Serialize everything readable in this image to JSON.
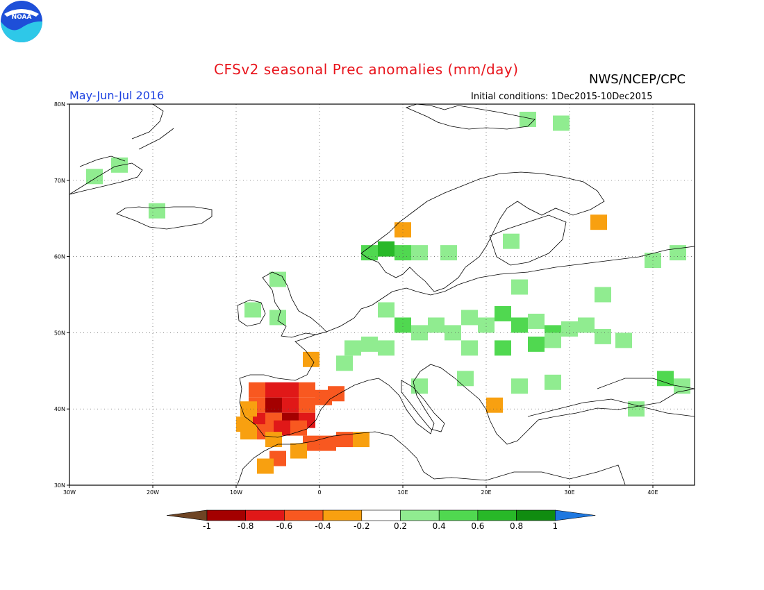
{
  "header": {
    "title": "CFSv2 seasonal Prec anomalies (mm/day)",
    "agency": "NWS/NCEP/CPC",
    "season": "May-Jun-Jul 2016",
    "initial_conditions": "Initial conditions: 1Dec2015-10Dec2015",
    "logo_text": "NOAA"
  },
  "map": {
    "lon_range": [
      -30,
      45
    ],
    "lat_range": [
      30,
      80
    ],
    "lon_tick_labels": [
      "30W",
      "20W",
      "10W",
      "0",
      "10E",
      "20E",
      "30E",
      "40E"
    ],
    "lat_tick_labels": [
      "30N",
      "40N",
      "50N",
      "60N",
      "70N",
      "80N"
    ],
    "grid": "dotted"
  },
  "colorbar": {
    "labels": [
      "-1",
      "-0.8",
      "-0.6",
      "-0.4",
      "-0.2",
      "0.2",
      "0.4",
      "0.6",
      "0.8",
      "1"
    ],
    "colors": [
      "#6e4424",
      "#a40000",
      "#e01818",
      "#f85820",
      "#f8a010",
      "#ffffff",
      "#90ec90",
      "#50d850",
      "#28b828",
      "#108c10",
      "#1e78e0"
    ]
  },
  "anomaly_cells": [
    {
      "lon": -7.5,
      "lat": 42.5,
      "v": -0.5
    },
    {
      "lon": -5.5,
      "lat": 42.5,
      "v": -0.7
    },
    {
      "lon": -3.5,
      "lat": 42.5,
      "v": -0.7
    },
    {
      "lon": -1.5,
      "lat": 42.5,
      "v": -0.5
    },
    {
      "lon": -7.5,
      "lat": 40.5,
      "v": -0.5
    },
    {
      "lon": -5.5,
      "lat": 40.5,
      "v": -0.9
    },
    {
      "lon": -3.5,
      "lat": 40.5,
      "v": -0.7
    },
    {
      "lon": -1.5,
      "lat": 40.5,
      "v": -0.5
    },
    {
      "lon": 0.5,
      "lat": 41.5,
      "v": -0.5
    },
    {
      "lon": 2.0,
      "lat": 42.0,
      "v": -0.5
    },
    {
      "lon": -7.5,
      "lat": 38.5,
      "v": -0.7
    },
    {
      "lon": -5.5,
      "lat": 38.5,
      "v": -0.5
    },
    {
      "lon": -3.5,
      "lat": 38.5,
      "v": -0.9
    },
    {
      "lon": -1.5,
      "lat": 38.5,
      "v": -0.7
    },
    {
      "lon": -8.5,
      "lat": 37.0,
      "v": -0.3
    },
    {
      "lon": -6.5,
      "lat": 37.0,
      "v": -0.5
    },
    {
      "lon": -4.5,
      "lat": 37.5,
      "v": -0.7
    },
    {
      "lon": -2.5,
      "lat": 37.5,
      "v": -0.5
    },
    {
      "lon": -8.5,
      "lat": 40.0,
      "v": -0.3
    },
    {
      "lon": -9.0,
      "lat": 38.0,
      "v": -0.3
    },
    {
      "lon": -5.5,
      "lat": 36.0,
      "v": -0.3
    },
    {
      "lon": -1.0,
      "lat": 35.5,
      "v": -0.5
    },
    {
      "lon": 1.0,
      "lat": 35.5,
      "v": -0.5
    },
    {
      "lon": 3.0,
      "lat": 36.0,
      "v": -0.5
    },
    {
      "lon": 5.0,
      "lat": 36.0,
      "v": -0.3
    },
    {
      "lon": -5.0,
      "lat": 33.5,
      "v": -0.5
    },
    {
      "lon": -6.5,
      "lat": 32.5,
      "v": -0.3
    },
    {
      "lon": -2.5,
      "lat": 34.5,
      "v": -0.3
    },
    {
      "lon": 21.0,
      "lat": 40.5,
      "v": -0.3
    },
    {
      "lon": 33.5,
      "lat": 64.5,
      "v": -0.3
    },
    {
      "lon": 10.0,
      "lat": 63.5,
      "v": -0.3
    },
    {
      "lon": -1.0,
      "lat": 46.5,
      "v": -0.3
    },
    {
      "lon": -27.0,
      "lat": 70.5,
      "v": 0.3
    },
    {
      "lon": -24.0,
      "lat": 72.0,
      "v": 0.3
    },
    {
      "lon": -19.5,
      "lat": 66.0,
      "v": 0.3
    },
    {
      "lon": 25.0,
      "lat": 78.0,
      "v": 0.3
    },
    {
      "lon": 29.0,
      "lat": 77.5,
      "v": 0.3
    },
    {
      "lon": 6.0,
      "lat": 60.5,
      "v": 0.5
    },
    {
      "lon": 8.0,
      "lat": 61.0,
      "v": 0.7
    },
    {
      "lon": 10.0,
      "lat": 60.5,
      "v": 0.5
    },
    {
      "lon": 12.0,
      "lat": 60.5,
      "v": 0.3
    },
    {
      "lon": 15.5,
      "lat": 60.5,
      "v": 0.3
    },
    {
      "lon": 23.0,
      "lat": 62.0,
      "v": 0.3
    },
    {
      "lon": -5.0,
      "lat": 57.0,
      "v": 0.3
    },
    {
      "lon": -8.0,
      "lat": 53.0,
      "v": 0.3
    },
    {
      "lon": 8.0,
      "lat": 53.0,
      "v": 0.3
    },
    {
      "lon": 10.0,
      "lat": 51.0,
      "v": 0.5
    },
    {
      "lon": 12.0,
      "lat": 50.0,
      "v": 0.3
    },
    {
      "lon": 14.0,
      "lat": 51.0,
      "v": 0.3
    },
    {
      "lon": 16.0,
      "lat": 50.0,
      "v": 0.3
    },
    {
      "lon": 18.0,
      "lat": 52.0,
      "v": 0.3
    },
    {
      "lon": 20.0,
      "lat": 51.0,
      "v": 0.3
    },
    {
      "lon": 22.0,
      "lat": 52.5,
      "v": 0.5
    },
    {
      "lon": 24.0,
      "lat": 51.0,
      "v": 0.5
    },
    {
      "lon": 26.0,
      "lat": 51.5,
      "v": 0.3
    },
    {
      "lon": 28.0,
      "lat": 50.0,
      "v": 0.5
    },
    {
      "lon": 30.0,
      "lat": 50.5,
      "v": 0.3
    },
    {
      "lon": 32.0,
      "lat": 51.0,
      "v": 0.3
    },
    {
      "lon": 34.0,
      "lat": 49.5,
      "v": 0.3
    },
    {
      "lon": 36.5,
      "lat": 49.0,
      "v": 0.3
    },
    {
      "lon": 4.0,
      "lat": 48.0,
      "v": 0.3
    },
    {
      "lon": 6.0,
      "lat": 48.5,
      "v": 0.3
    },
    {
      "lon": 8.0,
      "lat": 48.0,
      "v": 0.3
    },
    {
      "lon": 18.0,
      "lat": 48.0,
      "v": 0.3
    },
    {
      "lon": 22.0,
      "lat": 48.0,
      "v": 0.5
    },
    {
      "lon": 26.0,
      "lat": 48.5,
      "v": 0.5
    },
    {
      "lon": 28.0,
      "lat": 49.0,
      "v": 0.3
    },
    {
      "lon": 24.0,
      "lat": 56.0,
      "v": 0.3
    },
    {
      "lon": 3.0,
      "lat": 46.0,
      "v": 0.3
    },
    {
      "lon": 12.0,
      "lat": 43.0,
      "v": 0.3
    },
    {
      "lon": 17.5,
      "lat": 44.0,
      "v": 0.3
    },
    {
      "lon": 24.0,
      "lat": 43.0,
      "v": 0.3
    },
    {
      "lon": 28.0,
      "lat": 43.5,
      "v": 0.3
    },
    {
      "lon": 41.5,
      "lat": 44.0,
      "v": 0.5
    },
    {
      "lon": 43.5,
      "lat": 43.0,
      "v": 0.3
    },
    {
      "lon": 40.0,
      "lat": 59.5,
      "v": 0.3
    },
    {
      "lon": 43.0,
      "lat": 60.5,
      "v": 0.3
    },
    {
      "lon": 34.0,
      "lat": 55.0,
      "v": 0.3
    },
    {
      "lon": 38.0,
      "lat": 40.0,
      "v": 0.3
    },
    {
      "lon": -5.0,
      "lat": 52.0,
      "v": 0.3
    }
  ]
}
